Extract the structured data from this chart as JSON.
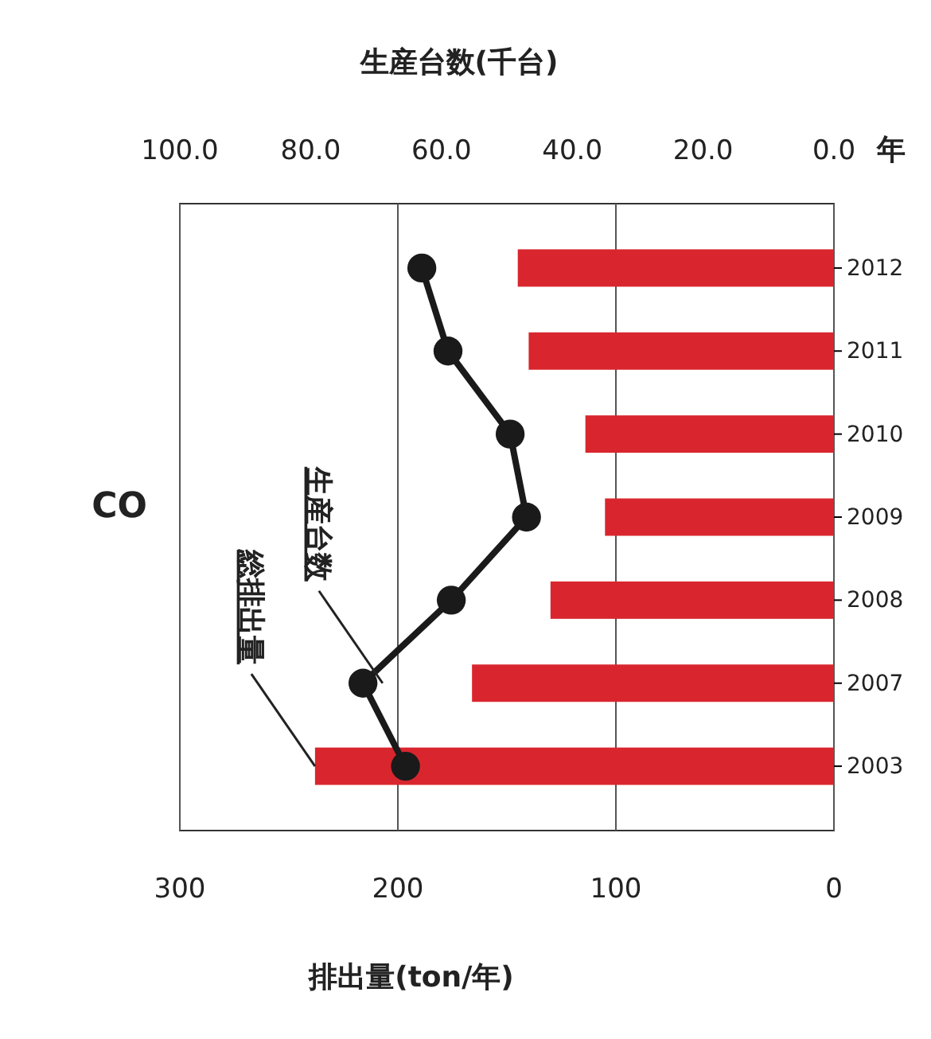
{
  "chart_data": {
    "type": "bar",
    "orientation": "horizontal",
    "title": "CO",
    "xlabel": "排出量(ton/年)",
    "x2label": "生産台数(千台)",
    "ylabel": "年",
    "categories": [
      "2012",
      "2011",
      "2010",
      "2009",
      "2008",
      "2007",
      "2003"
    ],
    "xlim": [
      300,
      0
    ],
    "xticks": [
      0,
      100,
      200,
      300
    ],
    "x2lim": [
      100,
      0
    ],
    "x2ticks": [
      {
        "value": 0,
        "label": "0.0"
      },
      {
        "value": 20,
        "label": "20.0"
      },
      {
        "value": 40,
        "label": "40.0"
      },
      {
        "value": 60,
        "label": "60.0"
      },
      {
        "value": 80,
        "label": "80.0"
      },
      {
        "value": 100,
        "label": "100.0"
      }
    ],
    "grid": "x",
    "marker": "circle",
    "series": [
      {
        "color": "#d9262e",
        "values": [
          145,
          140,
          114,
          105,
          130,
          166,
          238
        ]
      },
      {
        "type": "line",
        "axis": "x2",
        "color": "#1a1a1a",
        "values": [
          63,
          59,
          49.5,
          47,
          58.5,
          72,
          65.5
        ]
      }
    ],
    "annotations": [
      {
        "text": "総排出量",
        "x": 238,
        "y": "2003"
      },
      {
        "text": "生産台数",
        "x": 207,
        "y": "2007"
      }
    ]
  }
}
